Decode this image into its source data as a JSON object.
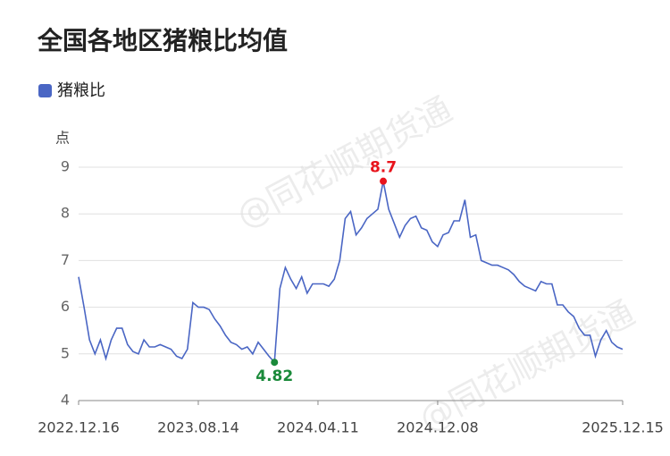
{
  "chart_data": {
    "type": "line",
    "title": "全国各地区猪粮比均值",
    "ylabel": "点",
    "watermark": "@同花顺期货通",
    "categories": [
      "2022.12.16",
      null,
      null,
      null,
      null,
      null,
      null,
      null,
      null,
      null,
      null,
      null,
      null,
      null,
      null,
      null,
      null,
      null,
      null,
      null,
      null,
      null,
      "2023.08.14",
      null,
      null,
      null,
      null,
      null,
      null,
      null,
      null,
      null,
      null,
      null,
      null,
      null,
      null,
      null,
      null,
      null,
      null,
      null,
      null,
      null,
      "2024.04.11",
      null,
      null,
      null,
      null,
      null,
      null,
      null,
      null,
      null,
      null,
      null,
      null,
      null,
      null,
      null,
      null,
      null,
      null,
      null,
      null,
      null,
      "2024.12.08",
      null,
      null,
      null,
      null,
      null,
      null,
      null,
      null,
      null,
      null,
      null,
      null,
      null,
      null,
      null,
      null,
      null,
      null,
      null,
      null,
      null,
      null,
      null,
      null,
      null,
      null,
      null,
      null,
      null,
      null,
      null,
      null,
      null,
      "2025.12.15"
    ],
    "series": [
      {
        "name": "猪粮比",
        "color": "#4a66c4",
        "values": [
          6.65,
          6.0,
          5.3,
          5.0,
          5.3,
          4.9,
          5.3,
          5.55,
          5.55,
          5.2,
          5.05,
          5.0,
          5.3,
          5.15,
          5.15,
          5.2,
          5.15,
          5.1,
          4.95,
          4.9,
          5.1,
          6.1,
          6.0,
          6.0,
          5.95,
          5.75,
          5.6,
          5.4,
          5.25,
          5.2,
          5.1,
          5.15,
          5.0,
          5.25,
          5.1,
          4.95,
          4.82,
          6.4,
          6.85,
          6.6,
          6.4,
          6.65,
          6.3,
          6.5,
          6.5,
          6.5,
          6.45,
          6.6,
          7.0,
          7.9,
          8.05,
          7.55,
          7.7,
          7.9,
          8.0,
          8.1,
          8.7,
          8.1,
          7.8,
          7.5,
          7.75,
          7.9,
          7.95,
          7.7,
          7.65,
          7.4,
          7.3,
          7.55,
          7.6,
          7.85,
          7.85,
          8.3,
          7.5,
          7.55,
          7.0,
          6.95,
          6.9,
          6.9,
          6.85,
          6.8,
          6.7,
          6.55,
          6.45,
          6.4,
          6.35,
          6.55,
          6.5,
          6.5,
          6.05,
          6.05,
          5.9,
          5.8,
          5.55,
          5.4,
          5.4,
          4.95,
          5.3,
          5.5,
          5.25,
          5.15,
          5.1
        ]
      }
    ],
    "ylim": [
      4,
      9
    ],
    "yticks": [
      4,
      5,
      6,
      7,
      8,
      9
    ],
    "grid": true,
    "max_color": "#e8141c",
    "min_color": "#1a8a3a"
  }
}
